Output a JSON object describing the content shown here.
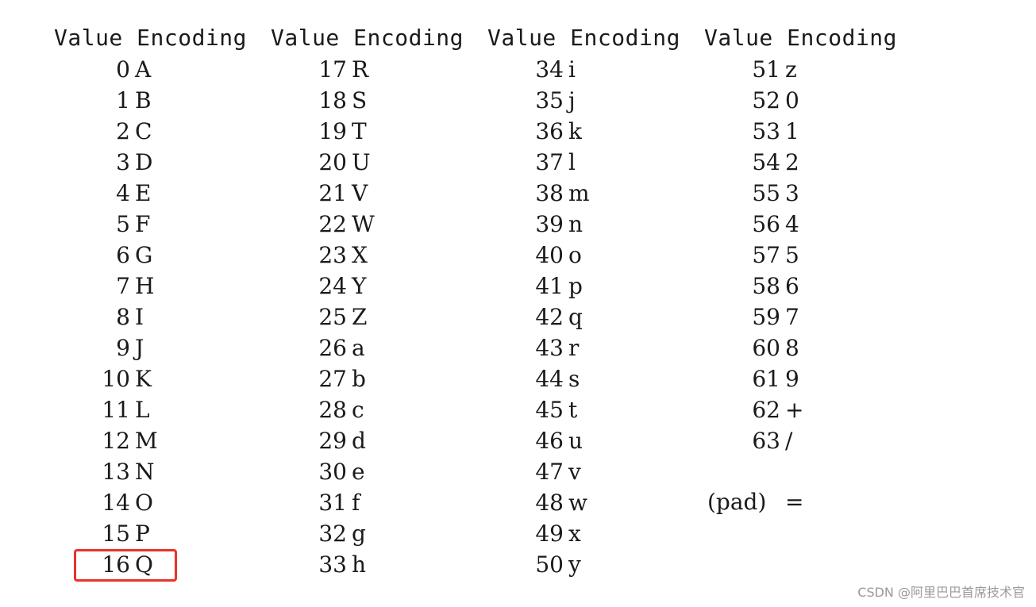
{
  "headers": {
    "value": "Value",
    "encoding": "Encoding"
  },
  "columns": [
    {
      "rows": [
        {
          "value": "0",
          "encoding": "A"
        },
        {
          "value": "1",
          "encoding": "B"
        },
        {
          "value": "2",
          "encoding": "C"
        },
        {
          "value": "3",
          "encoding": "D"
        },
        {
          "value": "4",
          "encoding": "E"
        },
        {
          "value": "5",
          "encoding": "F"
        },
        {
          "value": "6",
          "encoding": "G"
        },
        {
          "value": "7",
          "encoding": "H"
        },
        {
          "value": "8",
          "encoding": "I"
        },
        {
          "value": "9",
          "encoding": "J"
        },
        {
          "value": "10",
          "encoding": "K"
        },
        {
          "value": "11",
          "encoding": "L"
        },
        {
          "value": "12",
          "encoding": "M"
        },
        {
          "value": "13",
          "encoding": "N"
        },
        {
          "value": "14",
          "encoding": "O"
        },
        {
          "value": "15",
          "encoding": "P"
        },
        {
          "value": "16",
          "encoding": "Q"
        }
      ]
    },
    {
      "rows": [
        {
          "value": "17",
          "encoding": "R"
        },
        {
          "value": "18",
          "encoding": "S"
        },
        {
          "value": "19",
          "encoding": "T"
        },
        {
          "value": "20",
          "encoding": "U"
        },
        {
          "value": "21",
          "encoding": "V"
        },
        {
          "value": "22",
          "encoding": "W"
        },
        {
          "value": "23",
          "encoding": "X"
        },
        {
          "value": "24",
          "encoding": "Y"
        },
        {
          "value": "25",
          "encoding": "Z"
        },
        {
          "value": "26",
          "encoding": "a"
        },
        {
          "value": "27",
          "encoding": "b"
        },
        {
          "value": "28",
          "encoding": "c"
        },
        {
          "value": "29",
          "encoding": "d"
        },
        {
          "value": "30",
          "encoding": "e"
        },
        {
          "value": "31",
          "encoding": "f"
        },
        {
          "value": "32",
          "encoding": "g"
        },
        {
          "value": "33",
          "encoding": "h"
        }
      ]
    },
    {
      "rows": [
        {
          "value": "34",
          "encoding": "i"
        },
        {
          "value": "35",
          "encoding": "j"
        },
        {
          "value": "36",
          "encoding": "k"
        },
        {
          "value": "37",
          "encoding": "l"
        },
        {
          "value": "38",
          "encoding": "m"
        },
        {
          "value": "39",
          "encoding": "n"
        },
        {
          "value": "40",
          "encoding": "o"
        },
        {
          "value": "41",
          "encoding": "p"
        },
        {
          "value": "42",
          "encoding": "q"
        },
        {
          "value": "43",
          "encoding": "r"
        },
        {
          "value": "44",
          "encoding": "s"
        },
        {
          "value": "45",
          "encoding": "t"
        },
        {
          "value": "46",
          "encoding": "u"
        },
        {
          "value": "47",
          "encoding": "v"
        },
        {
          "value": "48",
          "encoding": "w"
        },
        {
          "value": "49",
          "encoding": "x"
        },
        {
          "value": "50",
          "encoding": "y"
        }
      ]
    },
    {
      "rows": [
        {
          "value": "51",
          "encoding": "z"
        },
        {
          "value": "52",
          "encoding": "0"
        },
        {
          "value": "53",
          "encoding": "1"
        },
        {
          "value": "54",
          "encoding": "2"
        },
        {
          "value": "55",
          "encoding": "3"
        },
        {
          "value": "56",
          "encoding": "4"
        },
        {
          "value": "57",
          "encoding": "5"
        },
        {
          "value": "58",
          "encoding": "6"
        },
        {
          "value": "59",
          "encoding": "7"
        },
        {
          "value": "60",
          "encoding": "8"
        },
        {
          "value": "61",
          "encoding": "9"
        },
        {
          "value": "62",
          "encoding": "+"
        },
        {
          "value": "63",
          "encoding": "/"
        }
      ]
    }
  ],
  "pad": {
    "label": "(pad)",
    "encoding": "="
  },
  "highlight_color": "#e8332a",
  "watermark": "CSDN @阿里巴巴首席技术官"
}
